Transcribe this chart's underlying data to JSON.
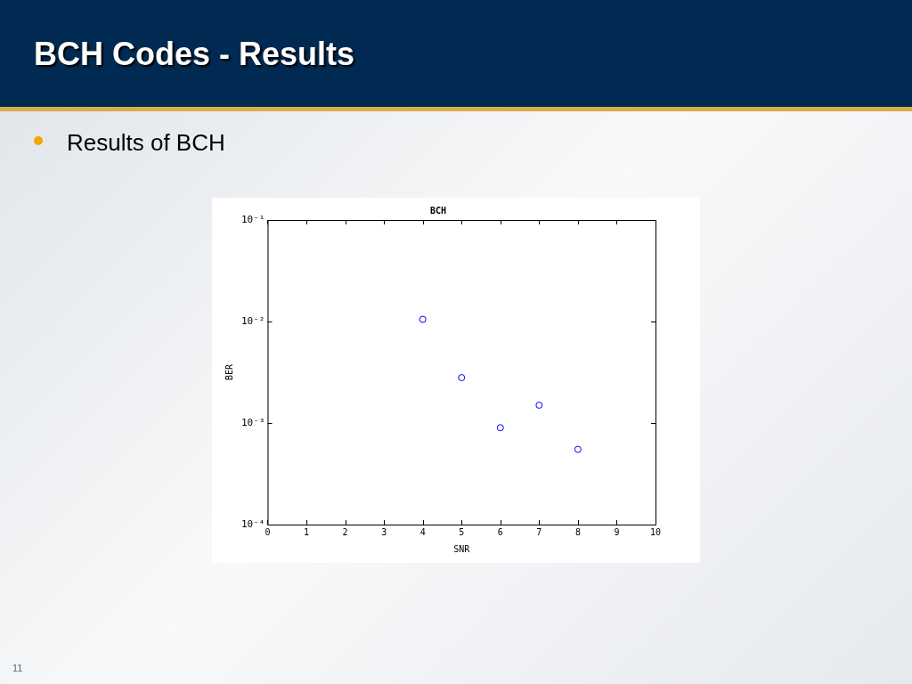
{
  "chart_data": {
    "type": "scatter",
    "title": "BCH",
    "xlabel": "SNR",
    "ylabel": "BER",
    "x": [
      4,
      5,
      6,
      7,
      8
    ],
    "series": [
      {
        "color": "#0000ff",
        "values": [
          0.0105,
          0.0028,
          0.0009,
          0.0015,
          0.00055
        ]
      }
    ],
    "xlim": [
      0,
      10
    ],
    "xticks": [
      0,
      1,
      2,
      3,
      4,
      5,
      6,
      7,
      8,
      9,
      10
    ],
    "ylim": [
      0.0001,
      0.1
    ],
    "yticks": [
      {
        "value": 0.0001,
        "label": "10⁻⁴"
      },
      {
        "value": 0.001,
        "label": "10⁻³"
      },
      {
        "value": 0.01,
        "label": "10⁻²"
      },
      {
        "value": 0.1,
        "label": "10⁻¹"
      }
    ],
    "log": "y",
    "grid": false,
    "legend": false,
    "marker": "circle",
    "annotations": [
      "BCH Codes - Results",
      "Results of BCH",
      "11"
    ]
  }
}
